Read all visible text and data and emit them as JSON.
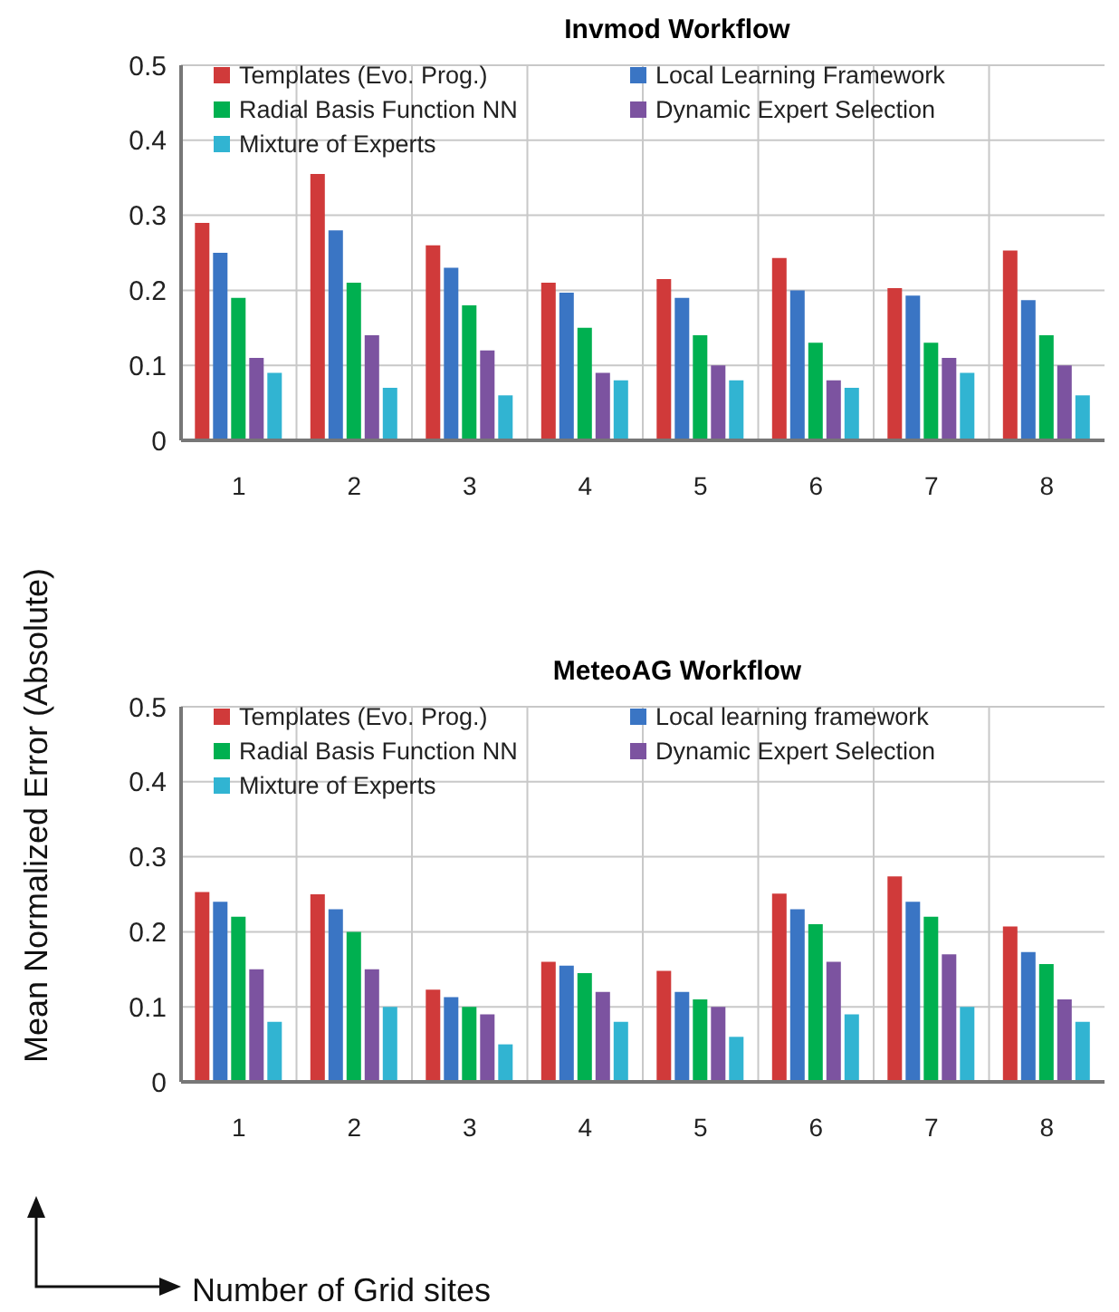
{
  "chart_data": [
    {
      "type": "bar",
      "title": "Invmod Workflow",
      "ylabel": "Mean Normalized Error (Absolute)",
      "categories": [
        "1",
        "2",
        "3",
        "4",
        "5",
        "6",
        "7",
        "8"
      ],
      "series": [
        {
          "name": "Templates (Evo. Prog.)",
          "color": "#d03a3a",
          "values": [
            0.29,
            0.355,
            0.26,
            0.21,
            0.215,
            0.243,
            0.203,
            0.253
          ]
        },
        {
          "name": "Local Learning Framework",
          "color": "#3a75c4",
          "values": [
            0.25,
            0.28,
            0.23,
            0.197,
            0.19,
            0.2,
            0.193,
            0.187
          ]
        },
        {
          "name": "Radial Basis Function NN",
          "color": "#00b050",
          "values": [
            0.19,
            0.21,
            0.18,
            0.15,
            0.14,
            0.13,
            0.13,
            0.14
          ]
        },
        {
          "name": "Dynamic Expert Selection",
          "color": "#7c53a0",
          "values": [
            0.11,
            0.14,
            0.12,
            0.09,
            0.1,
            0.08,
            0.11,
            0.1
          ]
        },
        {
          "name": "Mixture of Experts",
          "color": "#31b4d2",
          "values": [
            0.09,
            0.07,
            0.06,
            0.08,
            0.08,
            0.07,
            0.09,
            0.06
          ]
        }
      ],
      "ylim": [
        0,
        0.5
      ],
      "yticks": [
        0,
        0.1,
        0.2,
        0.3,
        0.4,
        0.5
      ],
      "grid": true,
      "legend": "top left"
    },
    {
      "type": "bar",
      "title": "MeteoAG Workflow",
      "xlabel": "Number of Grid sites",
      "categories": [
        "1",
        "2",
        "3",
        "4",
        "5",
        "6",
        "7",
        "8"
      ],
      "series": [
        {
          "name": "Templates (Evo. Prog.)",
          "color": "#d03a3a",
          "values": [
            0.253,
            0.25,
            0.123,
            0.16,
            0.148,
            0.251,
            0.274,
            0.207
          ]
        },
        {
          "name": "Local learning framework",
          "color": "#3a75c4",
          "values": [
            0.24,
            0.23,
            0.113,
            0.155,
            0.12,
            0.23,
            0.24,
            0.173
          ]
        },
        {
          "name": "Radial Basis Function NN",
          "color": "#00b050",
          "values": [
            0.22,
            0.2,
            0.1,
            0.145,
            0.11,
            0.21,
            0.22,
            0.157
          ]
        },
        {
          "name": "Dynamic Expert Selection",
          "color": "#7c53a0",
          "values": [
            0.15,
            0.15,
            0.09,
            0.12,
            0.1,
            0.16,
            0.17,
            0.11
          ]
        },
        {
          "name": "Mixture of Experts",
          "color": "#31b4d2",
          "values": [
            0.08,
            0.1,
            0.05,
            0.08,
            0.06,
            0.09,
            0.1,
            0.08
          ]
        }
      ],
      "ylim": [
        0,
        0.5
      ],
      "yticks": [
        0,
        0.1,
        0.2,
        0.3,
        0.4,
        0.5
      ],
      "grid": true,
      "legend": "top left"
    }
  ]
}
